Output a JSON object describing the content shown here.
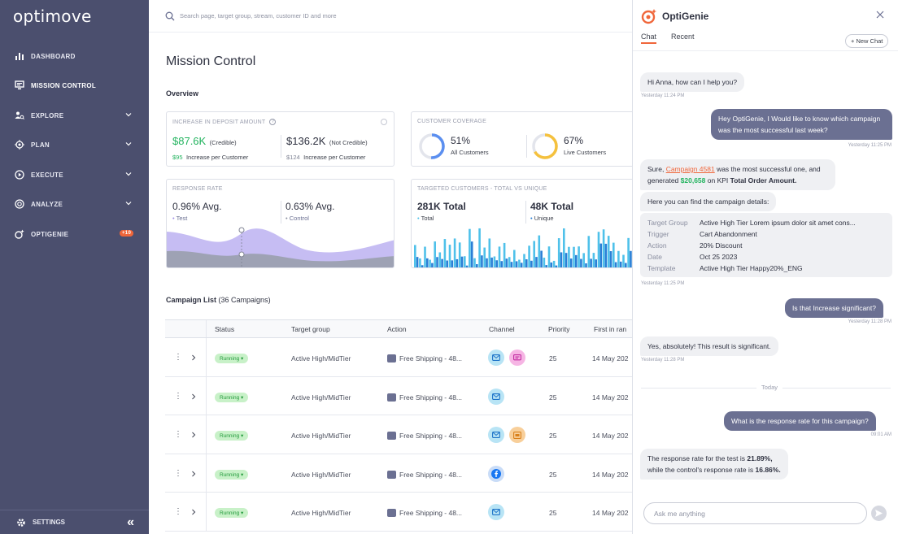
{
  "sidebar": {
    "logo": "optimove",
    "items": [
      {
        "label": "DASHBOARD",
        "icon": "bar-chart-icon"
      },
      {
        "label": "MISSION CONTROL",
        "icon": "monitor-icon"
      },
      {
        "label": "EXPLORE",
        "icon": "explore-icon"
      },
      {
        "label": "PLAN",
        "icon": "target-icon"
      },
      {
        "label": "EXECUTE",
        "icon": "play-icon"
      },
      {
        "label": "ANALYZE",
        "icon": "analyze-icon"
      },
      {
        "label": "OPTIGENIE",
        "icon": "genie-icon",
        "badge": "+10"
      }
    ],
    "settings": "SETTINGS",
    "collapse": "«"
  },
  "search": {
    "placeholder": "Search page, target group, stream, customer ID and more"
  },
  "main": {
    "title": "Mission Control",
    "overview": "Overview",
    "deposit": {
      "title": "INCREASE IN DEPOSIT AMOUNT",
      "credible_value": "$87.6K",
      "credible_label": "(Credible)",
      "credible_sub_value": "$95",
      "credible_sub_label": "Increase per Customer",
      "notcred_value": "$136.2K",
      "notcred_label": "(Not Credible)",
      "notcred_sub_value": "$124",
      "notcred_sub_label": "Increase per Customer"
    },
    "coverage": {
      "title": "CUSTOMER COVERAGE",
      "all_value": "51%",
      "all_label": "All Customers",
      "all_fraction": 0.51,
      "live_value": "67%",
      "live_label": "Live Customers",
      "live_fraction": 0.67
    },
    "response": {
      "title": "RESPONSE RATE",
      "test_value": "0.96% Avg.",
      "test_label": "Test",
      "control_value": "0.63% Avg.",
      "control_label": "Control"
    },
    "targeted": {
      "title": "TARGETED CUSTOMERS - TOTAL VS UNIQUE",
      "total_value": "281K Total",
      "total_label": "Total",
      "unique_value": "48K Total",
      "unique_label": "Unique"
    },
    "campaign_list": {
      "title": "Campaign List",
      "count": "(36 Campaigns)"
    },
    "table": {
      "headers": [
        "Status",
        "Target group",
        "Action",
        "Channel",
        "Priority",
        "First in ran"
      ],
      "rows": [
        {
          "status": "Running",
          "target": "Active High/MidTier",
          "action": "Free Shipping - 48...",
          "channels": [
            "email",
            "sms"
          ],
          "priority": "25",
          "first": "14 May 202"
        },
        {
          "status": "Running",
          "target": "Active High/MidTier",
          "action": "Free Shipping - 48...",
          "channels": [
            "email"
          ],
          "priority": "25",
          "first": "14 May 202"
        },
        {
          "status": "Running",
          "target": "Active High/MidTier",
          "action": "Free Shipping - 48...",
          "channels": [
            "email",
            "web"
          ],
          "priority": "25",
          "first": "14 May 202"
        },
        {
          "status": "Running",
          "target": "Active High/MidTier",
          "action": "Free Shipping - 48...",
          "channels": [
            "facebook"
          ],
          "priority": "25",
          "first": "14 May 202"
        },
        {
          "status": "Running",
          "target": "Active High/MidTier",
          "action": "Free Shipping - 48...",
          "channels": [
            "email"
          ],
          "priority": "25",
          "first": "14 May 202"
        }
      ]
    }
  },
  "chat": {
    "title": "OptiGenie",
    "tab_chat": "Chat",
    "tab_recent": "Recent",
    "new_chat": "+ New Chat",
    "messages": {
      "m1": "Hi Anna, how can I help you?",
      "m1_time": "Yesterday 11:24 PM",
      "m2": "Hey OptiGenie, I  Would like to know which campaign was the most successful last week?",
      "m2_time": "Yesterday 11:25 PM",
      "m3_a": "Sure, ",
      "m3_link": "Campaign 4581",
      "m3_b": " was the most successful one, and generated ",
      "m3_amount": "$20,658",
      "m3_c": " on KPI ",
      "m3_kpi": "Total Order Amount.",
      "m3_details_intro": "Here you can find the campaign details:",
      "m3_time": "Yesterday 11:25 PM",
      "m4": "Is that Increase significant?",
      "m4_time": "Yesterday 11:28 PM",
      "m5": "Yes, absolutely! This result is significant.",
      "m5_time": "Yesterday 11:28 PM",
      "today": "Today",
      "m6": "What is the response rate for this campaign?",
      "m6_time": "09:01 AM",
      "m7_a": "The response rate for the test is ",
      "m7_test": "21.89%,",
      "m7_b": "while the control's response rate is ",
      "m7_control": "16.86%."
    },
    "details": [
      {
        "k": "Target Group",
        "v": "Active High Tier Lorem ipsum dolor sit amet cons..."
      },
      {
        "k": "Trigger",
        "v": "Cart Abandonment"
      },
      {
        "k": "Action",
        "v": "20% Discount"
      },
      {
        "k": "Date",
        "v": "Oct 25 2023"
      },
      {
        "k": "Template",
        "v": "Active High Tier Happy20%_ENG"
      }
    ],
    "input_placeholder": "Ask me anything"
  }
}
